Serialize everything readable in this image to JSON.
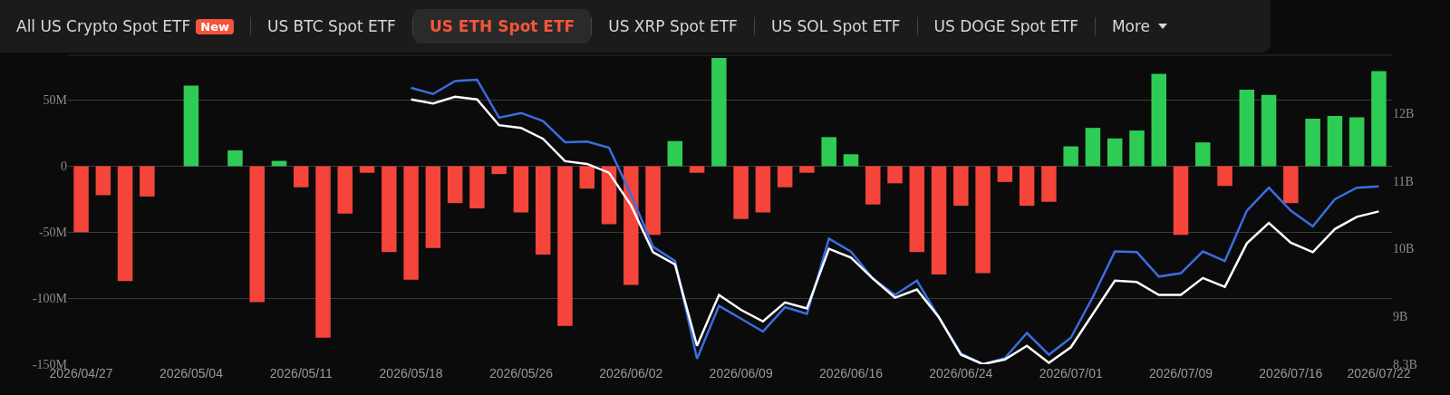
{
  "chart_data": {
    "type": "bar",
    "annotations": [
      "All US Crypto Spot ETF",
      "New",
      "US BTC Spot ETF",
      "US ETH Spot ETF",
      "US XRP Spot ETF",
      "US SOL Spot ETF",
      "US DOGE Spot ETF",
      "More"
    ],
    "categories": [
      "2026/04/27",
      null,
      null,
      null,
      null,
      "2026/05/04",
      null,
      null,
      null,
      null,
      "2026/05/11",
      null,
      null,
      null,
      null,
      "2026/05/18",
      null,
      null,
      null,
      null,
      "2026/05/26",
      null,
      null,
      null,
      null,
      "2026/06/02",
      null,
      null,
      null,
      null,
      "2026/06/09",
      null,
      null,
      null,
      null,
      "2026/06/16",
      null,
      null,
      null,
      null,
      "2026/06/24",
      null,
      null,
      null,
      null,
      "2026/07/01",
      null,
      null,
      null,
      null,
      "2026/07/09",
      null,
      null,
      null,
      null,
      "2026/07/16",
      null,
      null,
      null,
      "2026/07/22"
    ],
    "series": [
      {
        "colors": [
          "#f5443a",
          "#f5443a",
          "#f5443a",
          "#f5443a",
          "#2fcc55",
          "#2fcc55",
          "#2fcc55",
          "#2fcc55",
          "#f5443a",
          "#2fcc55",
          "#f5443a",
          "#f5443a",
          "#f5443a",
          "#f5443a",
          "#f5443a",
          "#f5443a",
          "#f5443a",
          "#f5443a",
          "#f5443a",
          "#f5443a",
          "#f5443a",
          "#f5443a",
          "#f5443a",
          "#f5443a",
          "#f5443a",
          "#f5443a",
          "#f5443a",
          "#2fcc55",
          "#f5443a",
          "#2fcc55",
          "#f5443a",
          "#f5443a",
          "#f5443a",
          "#f5443a",
          "#2fcc55",
          "#2fcc55",
          "#f5443a",
          "#f5443a",
          "#f5443a",
          "#f5443a",
          "#f5443a",
          "#f5443a",
          "#f5443a",
          "#f5443a",
          "#f5443a",
          "#2fcc55",
          "#2fcc55",
          "#2fcc55",
          "#2fcc55",
          "#2fcc55",
          "#f5443a",
          "#2fcc55",
          "#f5443a",
          "#2fcc55",
          "#2fcc55",
          "#f5443a",
          "#2fcc55",
          "#2fcc55",
          "#2fcc55",
          "#2fcc55"
        ],
        "values": [
          -50,
          -22,
          -87,
          -23,
          null,
          61,
          null,
          12,
          -103,
          4,
          -16,
          -130,
          -36,
          -5,
          -65,
          -86,
          -62,
          -28,
          -32,
          -6,
          -35,
          -67,
          -121,
          -17,
          -44,
          -90,
          -52,
          19,
          -5,
          82,
          -40,
          -35,
          -16,
          -5,
          22,
          9,
          -29,
          -13,
          -65,
          -82,
          -30,
          -81,
          -12,
          -30,
          -27,
          15,
          29,
          21,
          27,
          70,
          -52,
          18,
          -15,
          58,
          54,
          -28,
          36,
          38,
          37,
          72
        ]
      },
      {
        "type": "line",
        "axis": "y2",
        "color": "#3a6ee0",
        "values": [
          null,
          null,
          null,
          null,
          null,
          null,
          null,
          null,
          null,
          null,
          null,
          null,
          null,
          null,
          null,
          12.37,
          12.28,
          12.47,
          12.49,
          11.93,
          12.0,
          11.88,
          11.57,
          11.58,
          11.49,
          10.8,
          10.03,
          9.82,
          8.38,
          9.16,
          8.97,
          8.78,
          9.14,
          9.04,
          10.15,
          9.96,
          9.56,
          9.32,
          9.53,
          8.99,
          8.46,
          8.3,
          8.39,
          8.76,
          8.44,
          8.69,
          9.29,
          9.96,
          9.95,
          9.59,
          9.64,
          9.96,
          9.82,
          10.56,
          10.9,
          10.56,
          10.33,
          10.73,
          10.9,
          10.92
        ]
      },
      {
        "type": "line",
        "axis": "y2",
        "color": "#ffffff",
        "values": [
          null,
          null,
          null,
          null,
          null,
          null,
          null,
          null,
          null,
          null,
          null,
          null,
          null,
          null,
          null,
          12.2,
          12.14,
          12.24,
          12.2,
          11.82,
          11.78,
          11.62,
          11.29,
          11.25,
          11.12,
          10.64,
          9.95,
          9.77,
          8.57,
          9.32,
          9.1,
          8.93,
          9.21,
          9.12,
          10.0,
          9.87,
          9.56,
          9.28,
          9.4,
          8.99,
          8.44,
          8.3,
          8.37,
          8.57,
          8.32,
          8.55,
          9.04,
          9.53,
          9.51,
          9.32,
          9.32,
          9.57,
          9.44,
          10.08,
          10.38,
          10.09,
          9.95,
          10.29,
          10.47,
          10.55
        ]
      }
    ],
    "ylim": [
      -150,
      84
    ],
    "yticks": [
      {
        "value": -150,
        "label": "-150M"
      },
      {
        "value": -100,
        "label": "-100M"
      },
      {
        "value": -50,
        "label": "-50M"
      },
      0,
      {
        "value": 50,
        "label": "50M"
      }
    ],
    "y2lim": [
      8.3,
      12.85
    ],
    "y2ticks": [
      {
        "value": 8.3,
        "label": "8.3B"
      },
      {
        "value": 9,
        "label": "9B"
      },
      {
        "value": 10,
        "label": "10B"
      },
      {
        "value": 11,
        "label": "11B"
      },
      {
        "value": 12,
        "label": "12B"
      }
    ],
    "grid": "y",
    "marker": "none",
    "line_style": "solid"
  }
}
